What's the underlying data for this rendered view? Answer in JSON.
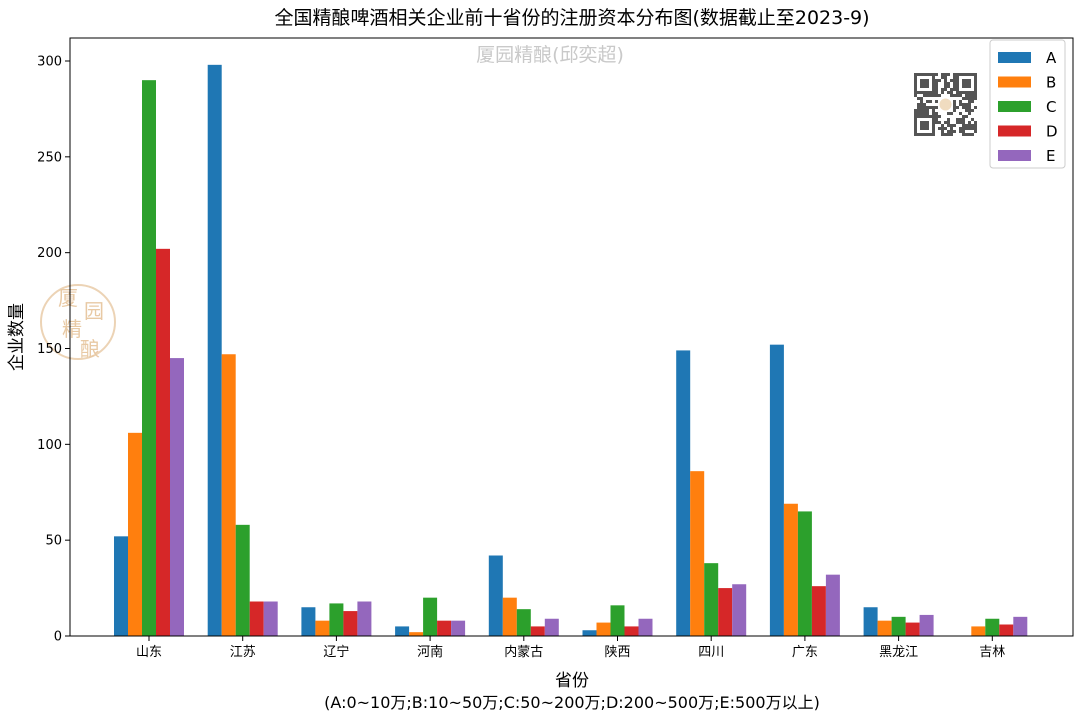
{
  "chart_data": {
    "type": "bar",
    "title": "全国精酿啤酒相关企业前十省份的注册资本分布图(数据截止至2023-9)",
    "xlabel": "省份",
    "xlabel_note": "(A:0~10万;B:10~50万;C:50~200万;D:200~500万;E:500万以上)",
    "ylabel": "企业数量",
    "ylim": [
      0,
      312
    ],
    "yticks": [
      0,
      50,
      100,
      150,
      200,
      250,
      300
    ],
    "grid": false,
    "legend_position": "top-right",
    "categories": [
      "山东",
      "江苏",
      "辽宁",
      "河南",
      "内蒙古",
      "陕西",
      "四川",
      "广东",
      "黑龙江",
      "吉林"
    ],
    "series": [
      {
        "name": "A",
        "color": "#1f77b4",
        "values": [
          52,
          298,
          15,
          5,
          42,
          3,
          149,
          152,
          15,
          0
        ]
      },
      {
        "name": "B",
        "color": "#ff7f0e",
        "values": [
          106,
          147,
          8,
          2,
          20,
          7,
          86,
          69,
          8,
          5
        ]
      },
      {
        "name": "C",
        "color": "#2ca02c",
        "values": [
          290,
          58,
          17,
          20,
          14,
          16,
          38,
          65,
          10,
          9
        ]
      },
      {
        "name": "D",
        "color": "#d62728",
        "values": [
          202,
          18,
          13,
          8,
          5,
          5,
          25,
          26,
          7,
          6
        ]
      },
      {
        "name": "E",
        "color": "#9467bd",
        "values": [
          145,
          18,
          18,
          8,
          9,
          9,
          27,
          32,
          11,
          10
        ]
      }
    ]
  },
  "watermark": {
    "text": "厦园精酿(邱奕超)",
    "seal_chars": [
      "厦",
      "园",
      "精",
      "酿"
    ],
    "seal_color": "#e8c9a4"
  },
  "qr_icon": "qr-code-icon"
}
